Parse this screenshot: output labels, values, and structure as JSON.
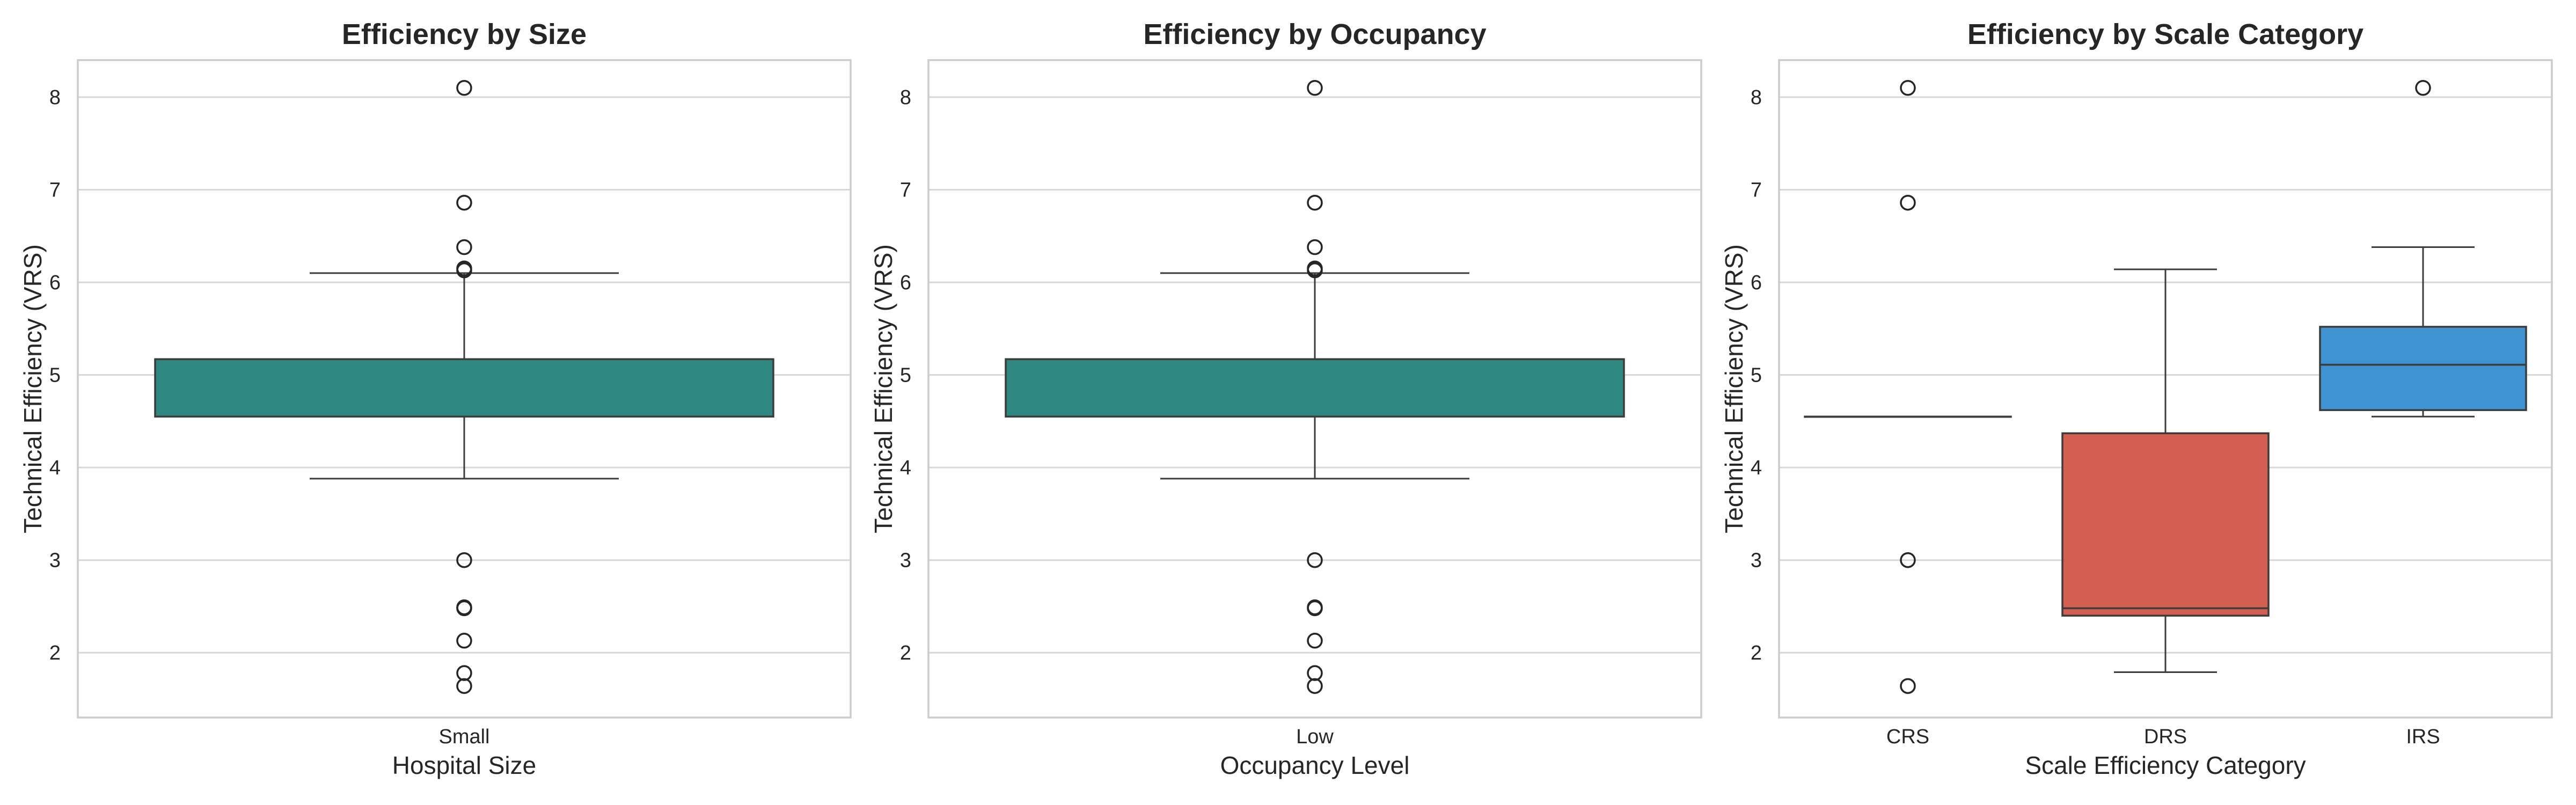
{
  "chart_data": [
    {
      "type": "box",
      "title": "Efficiency by Size",
      "xlabel": "Hospital Size",
      "ylabel": "Technical Efficiency (VRS)",
      "ylim": [
        1.3,
        8.4
      ],
      "yticks": [
        2,
        3,
        4,
        5,
        6,
        7,
        8
      ],
      "grid": true,
      "categories": [
        "Small"
      ],
      "boxes": [
        {
          "category": "Small",
          "color": "#2e8780",
          "whisker_low": 3.88,
          "q1": 4.55,
          "median": 5.17,
          "q3": 5.17,
          "whisker_high": 6.1,
          "outliers": [
            8.1,
            6.86,
            6.38,
            6.15,
            6.13,
            3.0,
            2.49,
            2.48,
            2.13,
            1.78,
            1.64
          ]
        }
      ]
    },
    {
      "type": "box",
      "title": "Efficiency by Occupancy",
      "xlabel": "Occupancy Level",
      "ylabel": "Technical Efficiency (VRS)",
      "ylim": [
        1.3,
        8.4
      ],
      "yticks": [
        2,
        3,
        4,
        5,
        6,
        7,
        8
      ],
      "grid": true,
      "categories": [
        "Low"
      ],
      "boxes": [
        {
          "category": "Low",
          "color": "#2e8780",
          "whisker_low": 3.88,
          "q1": 4.55,
          "median": 5.17,
          "q3": 5.17,
          "whisker_high": 6.1,
          "outliers": [
            8.1,
            6.86,
            6.38,
            6.15,
            6.13,
            3.0,
            2.49,
            2.48,
            2.13,
            1.78,
            1.64
          ]
        }
      ]
    },
    {
      "type": "box",
      "title": "Efficiency by Scale Category",
      "xlabel": "Scale Efficiency Category",
      "ylabel": "Technical Efficiency (VRS)",
      "ylim": [
        1.3,
        8.4
      ],
      "yticks": [
        2,
        3,
        4,
        5,
        6,
        7,
        8
      ],
      "grid": true,
      "categories": [
        "CRS",
        "DRS",
        "IRS"
      ],
      "boxes": [
        {
          "category": "CRS",
          "color": "#2e8780",
          "whisker_low": 4.55,
          "q1": 4.55,
          "median": 4.55,
          "q3": 4.55,
          "whisker_high": 4.55,
          "outliers": [
            8.1,
            6.86,
            3.0,
            1.64
          ]
        },
        {
          "category": "DRS",
          "color": "#d35f51",
          "whisker_low": 1.79,
          "q1": 2.4,
          "median": 2.48,
          "q3": 4.37,
          "whisker_high": 6.14,
          "outliers": []
        },
        {
          "category": "IRS",
          "color": "#3f93d0",
          "whisker_low": 4.55,
          "q1": 4.62,
          "median": 5.11,
          "q3": 5.52,
          "whisker_high": 6.38,
          "outliers": [
            8.1
          ]
        }
      ]
    }
  ]
}
